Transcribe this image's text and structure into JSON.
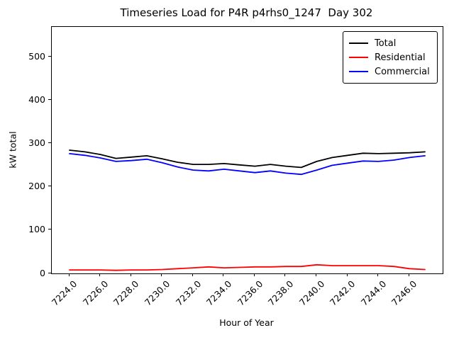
{
  "title": "Timeseries Load for P4R p4rhs0_1247  Day 302",
  "xlabel": "Hour of Year",
  "ylabel": "kW total",
  "colors": {
    "total": "#000000",
    "residential": "#ff0000",
    "commercial": "#0000ff",
    "axes": "#000000",
    "background": "#ffffff"
  },
  "chart_data": {
    "type": "line",
    "title": "Timeseries Load for P4R p4rhs0_1247  Day 302",
    "xlabel": "Hour of Year",
    "ylabel": "kW total",
    "grid": false,
    "legend_position": "upper right",
    "xlim": [
      7222.85,
      7248.15
    ],
    "ylim": [
      0,
      570
    ],
    "xticks": [
      7224,
      7226,
      7228,
      7230,
      7232,
      7234,
      7236,
      7238,
      7240,
      7242,
      7244,
      7246
    ],
    "xtick_labels": [
      "7224.0",
      "7226.0",
      "7228.0",
      "7230.0",
      "7232.0",
      "7234.0",
      "7236.0",
      "7238.0",
      "7240.0",
      "7242.0",
      "7244.0",
      "7246.0"
    ],
    "yticks": [
      0,
      100,
      200,
      300,
      400,
      500
    ],
    "x": [
      7224,
      7225,
      7226,
      7227,
      7228,
      7229,
      7230,
      7231,
      7232,
      7233,
      7234,
      7235,
      7236,
      7237,
      7238,
      7239,
      7240,
      7241,
      7242,
      7243,
      7244,
      7245,
      7246,
      7247
    ],
    "series": [
      {
        "name": "Total",
        "color": "#000000",
        "values": [
          285,
          281,
          275,
          266,
          269,
          272,
          265,
          257,
          252,
          252,
          254,
          251,
          248,
          252,
          248,
          245,
          259,
          268,
          273,
          278,
          277,
          278,
          279,
          281
        ]
      },
      {
        "name": "Residential",
        "color": "#ff0000",
        "values": [
          8,
          8,
          8,
          7,
          8,
          8,
          9,
          11,
          13,
          15,
          13,
          14,
          15,
          15,
          16,
          16,
          20,
          18,
          18,
          18,
          18,
          16,
          11,
          9
        ]
      },
      {
        "name": "Commercial",
        "color": "#0000ff",
        "values": [
          277,
          273,
          267,
          259,
          261,
          264,
          256,
          246,
          239,
          237,
          241,
          237,
          233,
          237,
          232,
          229,
          239,
          250,
          255,
          260,
          259,
          262,
          268,
          272
        ]
      }
    ]
  },
  "legend": {
    "items": [
      {
        "label": "Total",
        "color": "#000000"
      },
      {
        "label": "Residential",
        "color": "#ff0000"
      },
      {
        "label": "Commercial",
        "color": "#0000ff"
      }
    ]
  }
}
